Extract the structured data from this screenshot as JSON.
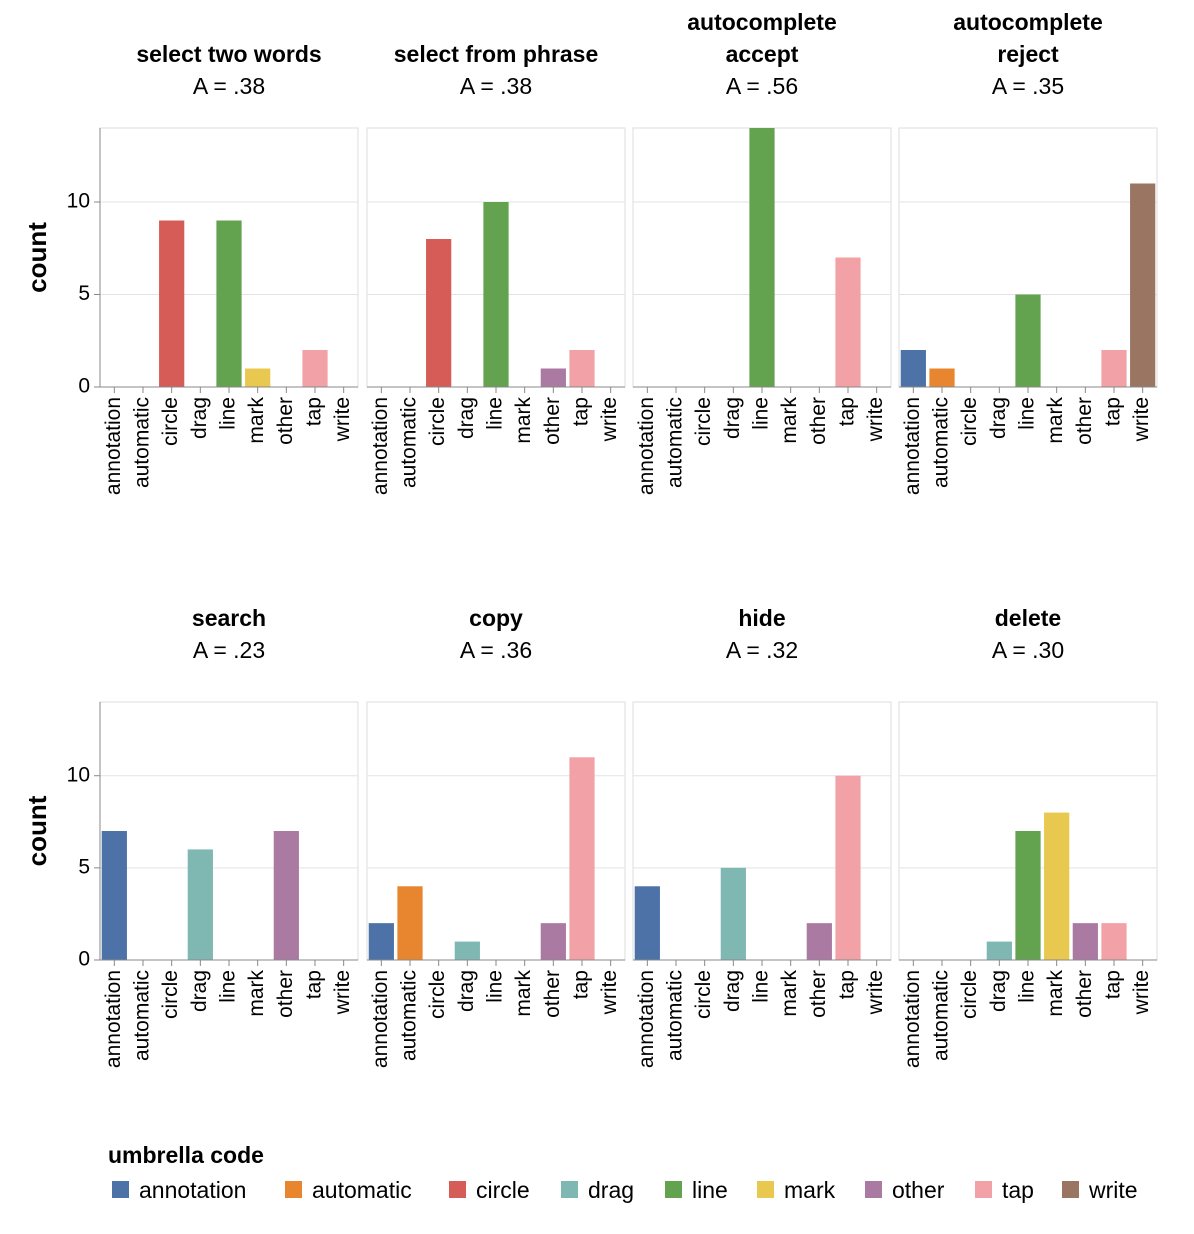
{
  "chart_data": {
    "type": "bar",
    "ylabel": "count",
    "ylim": [
      0,
      14
    ],
    "yticks": [
      0,
      5,
      10
    ],
    "categories": [
      "annotation",
      "automatic",
      "circle",
      "drag",
      "line",
      "mark",
      "other",
      "tap",
      "write"
    ],
    "colors": {
      "annotation": "#4c72a8",
      "automatic": "#e8862f",
      "circle": "#d65c57",
      "drag": "#7fb7b2",
      "line": "#63a24f",
      "mark": "#e9c84f",
      "other": "#ab7aa3",
      "tap": "#f2a1a6",
      "write": "#9a7662"
    },
    "panels": [
      {
        "title": [
          "select two words"
        ],
        "subtitle": "A = .38",
        "values": {
          "circle": 9,
          "line": 9,
          "mark": 1,
          "tap": 2
        }
      },
      {
        "title": [
          "select from phrase"
        ],
        "subtitle": "A = .38",
        "values": {
          "circle": 8,
          "line": 10,
          "other": 1,
          "tap": 2
        }
      },
      {
        "title": [
          "autocomplete",
          "accept"
        ],
        "subtitle": "A = .56",
        "values": {
          "line": 14,
          "tap": 7
        }
      },
      {
        "title": [
          "autocomplete",
          "reject"
        ],
        "subtitle": "A = .35",
        "values": {
          "annotation": 2,
          "automatic": 1,
          "line": 5,
          "tap": 2,
          "write": 11
        }
      },
      {
        "title": [
          "search"
        ],
        "subtitle": "A = .23",
        "values": {
          "annotation": 7,
          "drag": 6,
          "other": 7
        }
      },
      {
        "title": [
          "copy"
        ],
        "subtitle": "A = .36",
        "values": {
          "annotation": 2,
          "automatic": 4,
          "drag": 1,
          "other": 2,
          "tap": 11
        }
      },
      {
        "title": [
          "hide"
        ],
        "subtitle": "A = .32",
        "values": {
          "annotation": 4,
          "drag": 5,
          "other": 2,
          "tap": 10
        }
      },
      {
        "title": [
          "delete"
        ],
        "subtitle": "A = .30",
        "values": {
          "drag": 1,
          "line": 7,
          "mark": 8,
          "other": 2,
          "tap": 2
        }
      }
    ],
    "legend": {
      "title": "umbrella code",
      "items": [
        "annotation",
        "automatic",
        "circle",
        "drag",
        "line",
        "mark",
        "other",
        "tap",
        "write"
      ],
      "placement": "bottom-left"
    }
  }
}
